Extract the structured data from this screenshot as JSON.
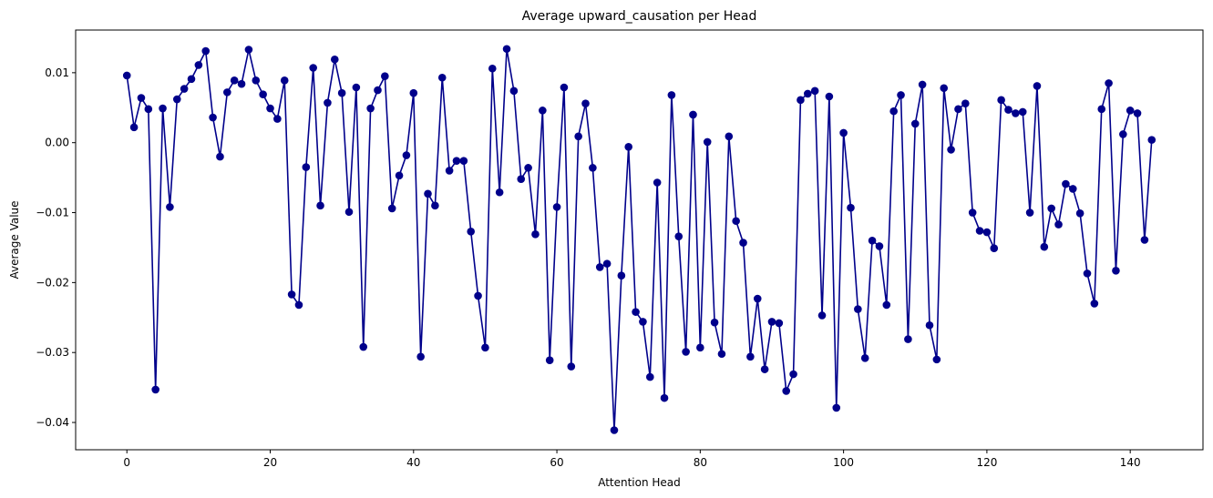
{
  "chart_data": {
    "type": "line",
    "title": "Average upward_causation per Head",
    "xlabel": "Attention Head",
    "ylabel": "Average Value",
    "xlim": [
      -7.15,
      150.15
    ],
    "ylim": [
      -0.0439,
      0.0161
    ],
    "xticks": [
      0,
      20,
      40,
      60,
      80,
      100,
      120,
      140
    ],
    "yticks": [
      -0.04,
      -0.03,
      -0.02,
      -0.01,
      0.0,
      0.01
    ],
    "ytick_labels": [
      "−0.04",
      "−0.03",
      "−0.02",
      "−0.01",
      "0.00",
      "0.01"
    ],
    "grid": false,
    "line_color": "#00008b",
    "marker": "circle",
    "series": [
      {
        "x": [
          0,
          1,
          2,
          3,
          4,
          5,
          6,
          7,
          8,
          9,
          10,
          11,
          12,
          13,
          14,
          15,
          16,
          17,
          18,
          19,
          20,
          21,
          22,
          23,
          24,
          25,
          26,
          27,
          28,
          29,
          30,
          31,
          32,
          33,
          34,
          35,
          36,
          37,
          38,
          39,
          40,
          41,
          42,
          43,
          44,
          45,
          46,
          47,
          48,
          49,
          50,
          51,
          52,
          53,
          54,
          55,
          56,
          57,
          58,
          59,
          60,
          61,
          62,
          63,
          64,
          65,
          66,
          67,
          68,
          69,
          70,
          71,
          72,
          73,
          74,
          75,
          76,
          77,
          78,
          79,
          80,
          81,
          82,
          83,
          84,
          85,
          86,
          87,
          88,
          89,
          90,
          91,
          92,
          93,
          94,
          95,
          96,
          97,
          98,
          99,
          100,
          101,
          102,
          103,
          104,
          105,
          106,
          107,
          108,
          109,
          110,
          111,
          112,
          113,
          114,
          115,
          116,
          117,
          118,
          119,
          120,
          121,
          122,
          123,
          124,
          125,
          126,
          127,
          128,
          129,
          130,
          131,
          132,
          133,
          134,
          135,
          136,
          137,
          138,
          139,
          140,
          141,
          142,
          143
        ],
        "y": [
          0.0096,
          0.0022,
          0.0064,
          0.0048,
          -0.0353,
          0.0049,
          -0.0092,
          0.0062,
          0.0077,
          0.0091,
          0.0111,
          0.0131,
          0.0036,
          -0.002,
          0.0072,
          0.0089,
          0.0084,
          0.0133,
          0.0089,
          0.0069,
          0.0049,
          0.0034,
          0.0089,
          -0.0217,
          -0.0232,
          -0.0035,
          0.0107,
          -0.009,
          0.0057,
          0.0119,
          0.0071,
          -0.0099,
          0.0079,
          -0.0292,
          0.0049,
          0.0075,
          0.0095,
          -0.0094,
          -0.0047,
          -0.0018,
          0.0071,
          -0.0306,
          -0.0073,
          -0.009,
          0.0093,
          -0.004,
          -0.0026,
          -0.0026,
          -0.0127,
          -0.0219,
          -0.0293,
          0.0106,
          -0.0071,
          0.0134,
          0.0074,
          -0.0052,
          -0.0036,
          -0.0131,
          0.0046,
          -0.0311,
          -0.0092,
          0.0079,
          -0.032,
          0.0009,
          0.0056,
          -0.0036,
          -0.0178,
          -0.0173,
          -0.0411,
          -0.019,
          -0.0006,
          -0.0242,
          -0.0256,
          -0.0335,
          -0.0057,
          -0.0365,
          0.0068,
          -0.0134,
          -0.0299,
          0.004,
          -0.0293,
          0.0001,
          -0.0257,
          -0.0302,
          0.0009,
          -0.0112,
          -0.0143,
          -0.0306,
          -0.0223,
          -0.0324,
          -0.0256,
          -0.0258,
          -0.0355,
          -0.0331,
          0.0061,
          0.007,
          0.0074,
          -0.0247,
          0.0066,
          -0.0379,
          0.0014,
          -0.0093,
          -0.0238,
          -0.0308,
          -0.014,
          -0.0148,
          -0.0232,
          0.0045,
          0.0068,
          -0.0281,
          0.0027,
          0.0083,
          -0.0261,
          -0.031,
          0.0078,
          -0.001,
          0.0048,
          0.0056,
          -0.01,
          -0.0126,
          -0.0128,
          -0.0151,
          0.0061,
          0.0047,
          0.0042,
          0.0044,
          -0.01,
          0.0081,
          -0.0149,
          -0.0094,
          -0.0117,
          -0.0059,
          -0.0066,
          -0.0101,
          -0.0187,
          -0.023,
          0.0048,
          0.0085,
          -0.0183,
          0.0012,
          0.0046,
          0.0042,
          -0.0139,
          0.0004
        ]
      }
    ]
  }
}
